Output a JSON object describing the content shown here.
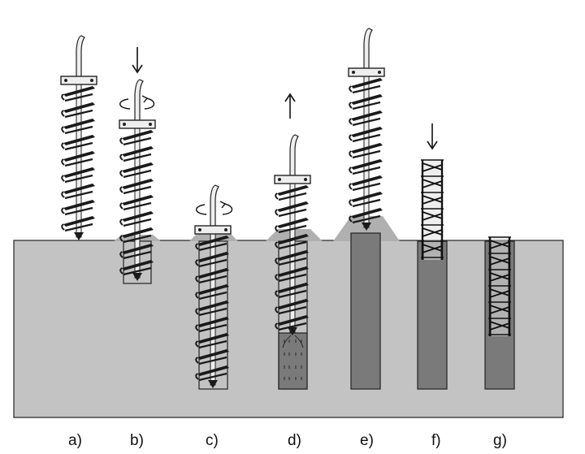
{
  "figure": {
    "colors": {
      "ground": "#c3c3c3",
      "concrete": "#7a7a7a",
      "spoil": "#b0b0b0",
      "outline": "#222222",
      "auger": "#1a1a1a",
      "shaft": "#eeeeee"
    },
    "steps": [
      {
        "label": "a)",
        "description_icon": "auger-above-ground"
      },
      {
        "label": "b)",
        "description_icon": "auger-rotating-down"
      },
      {
        "label": "c)",
        "description_icon": "auger-full-depth"
      },
      {
        "label": "d)",
        "description_icon": "auger-withdraw-concrete"
      },
      {
        "label": "e)",
        "description_icon": "concrete-filled-pile"
      },
      {
        "label": "f)",
        "description_icon": "rebar-cage-insert"
      },
      {
        "label": "g)",
        "description_icon": "finished-pile"
      }
    ]
  }
}
